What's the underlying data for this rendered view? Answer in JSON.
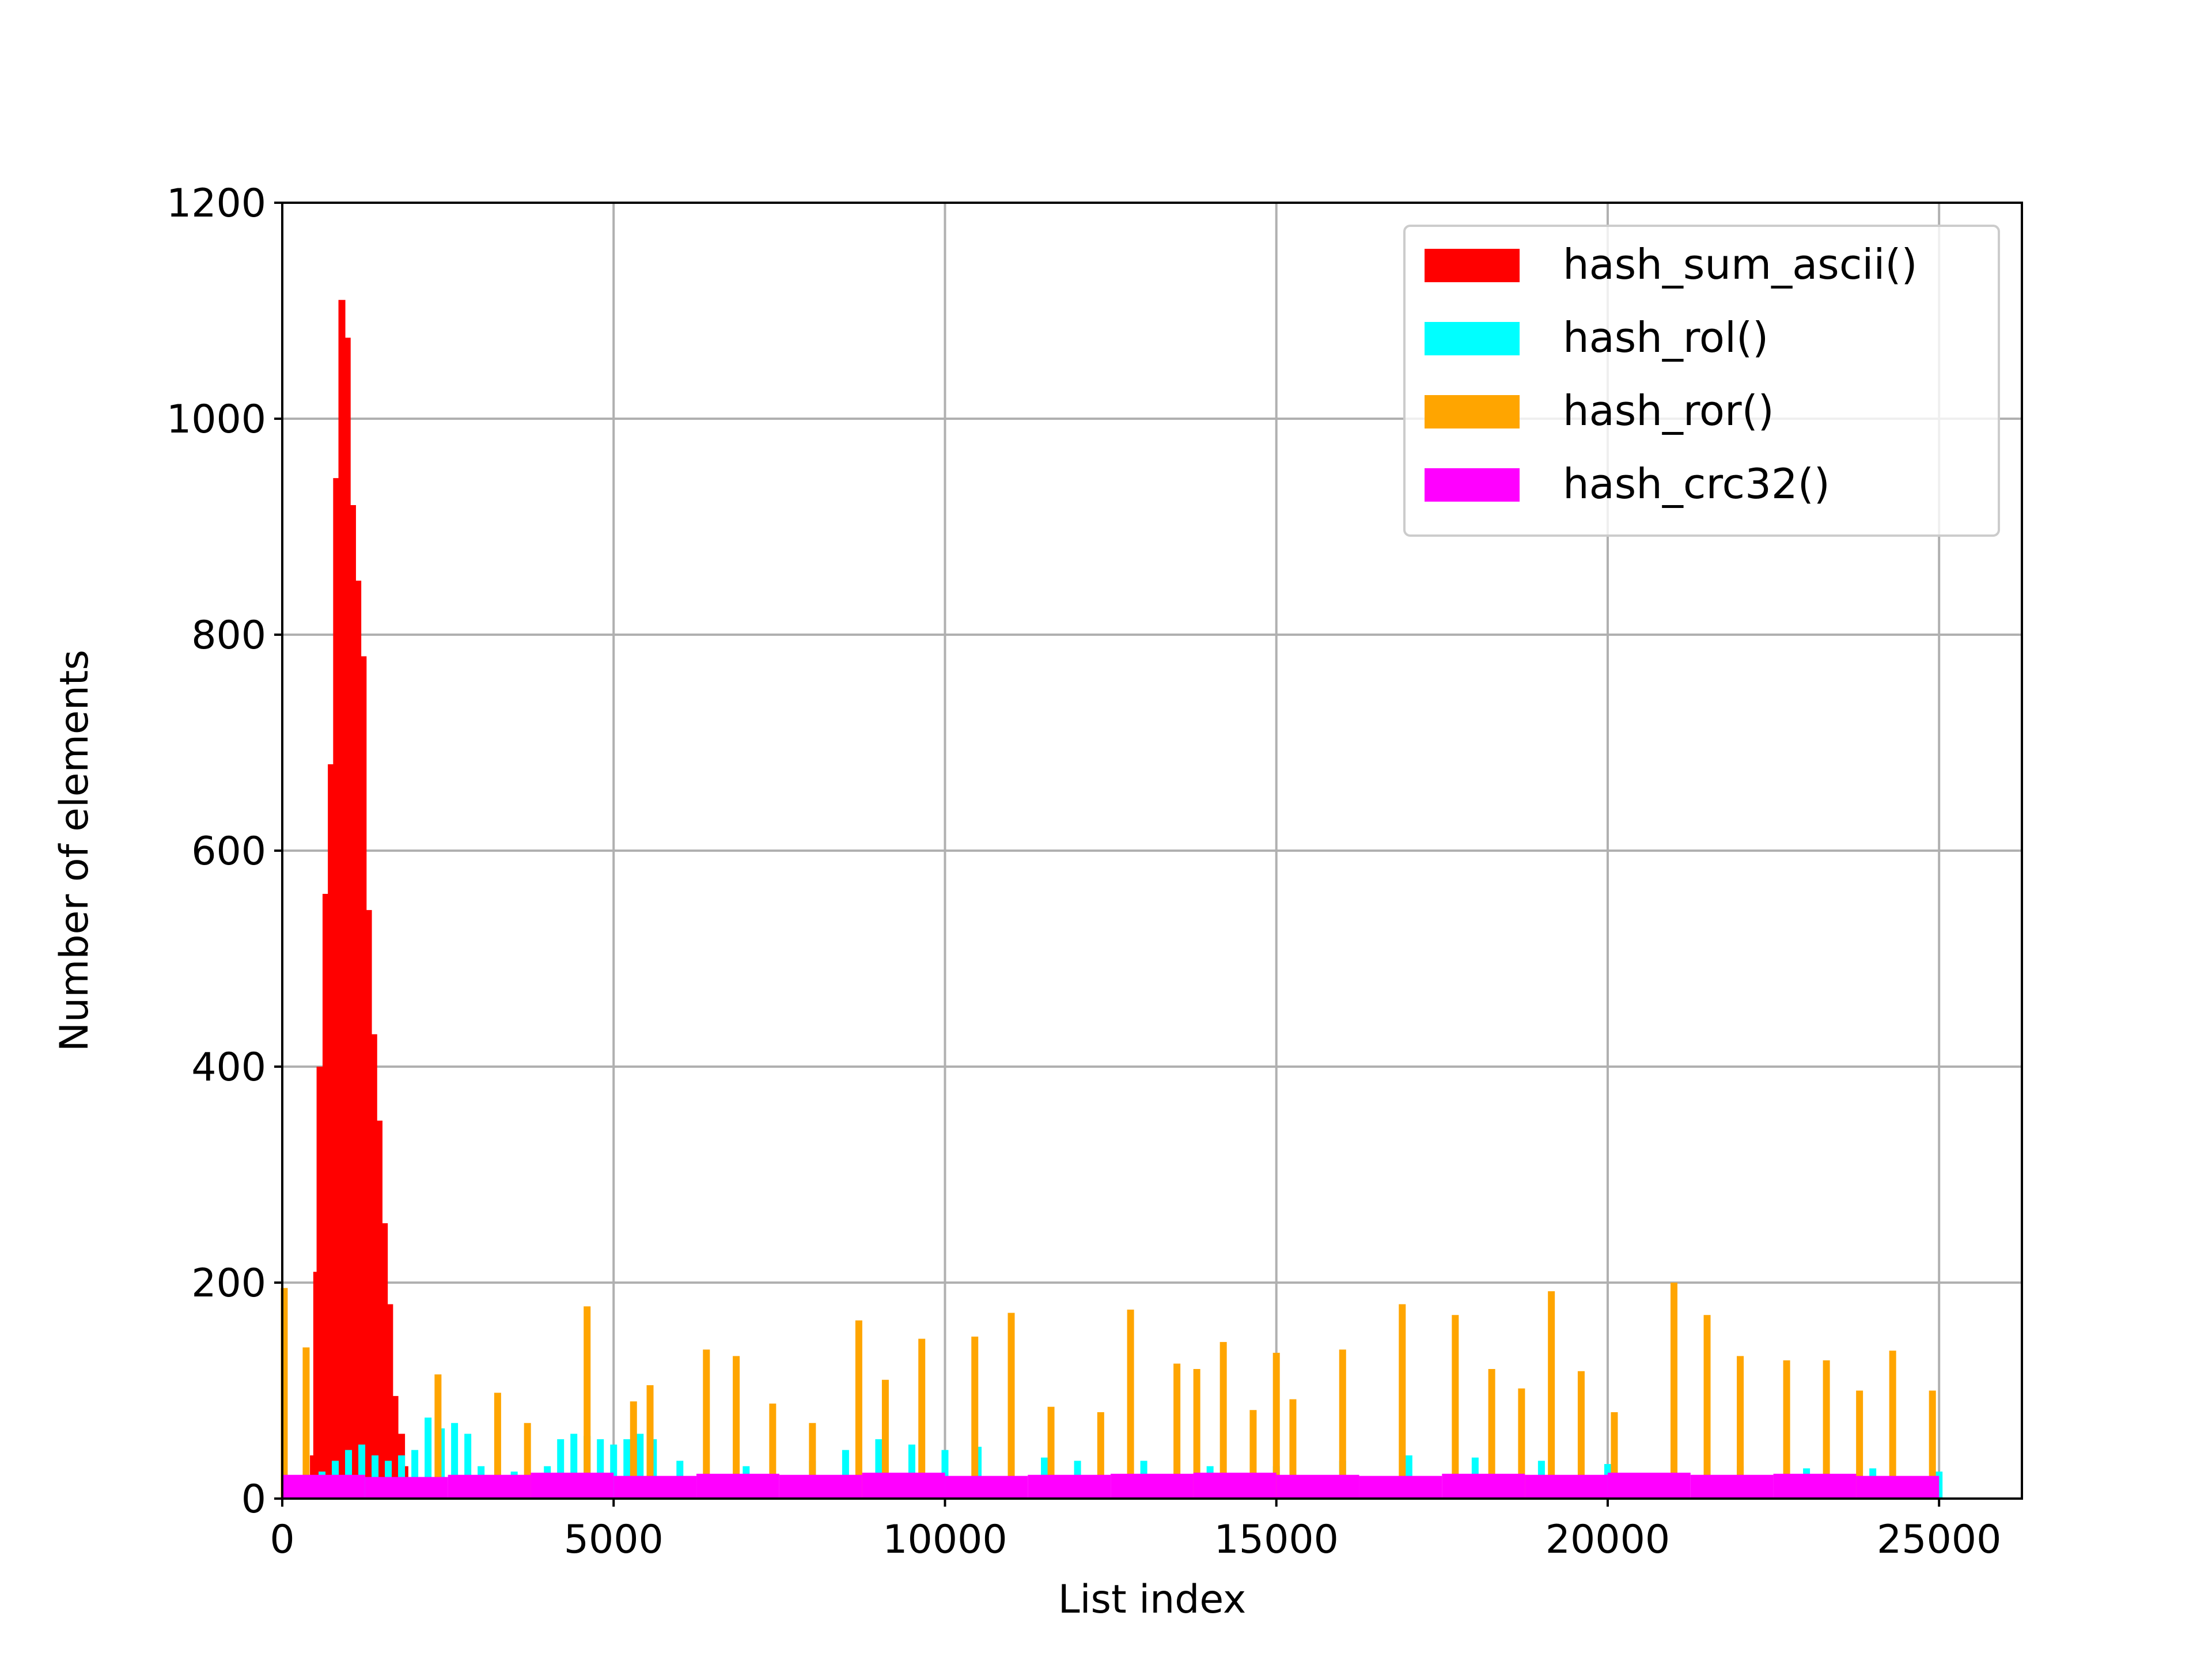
{
  "chart_data": {
    "type": "bar",
    "title": "",
    "xlabel": "List index",
    "ylabel": "Number of elements",
    "xlim": [
      0,
      26250
    ],
    "ylim": [
      0,
      1200
    ],
    "xticks": [
      0,
      5000,
      10000,
      15000,
      20000,
      25000
    ],
    "yticks": [
      0,
      200,
      400,
      600,
      800,
      1000,
      1200
    ],
    "grid": true,
    "legend_position": "upper-right",
    "series": [
      {
        "name": "hash_sum_ascii()",
        "color": "#ff0000",
        "x": [
          420,
          470,
          520,
          570,
          620,
          660,
          700,
          740,
          780,
          820,
          860,
          900,
          940,
          980,
          1020,
          1060,
          1100,
          1140,
          1180,
          1220,
          1260,
          1300,
          1340,
          1380,
          1420,
          1460,
          1500,
          1540,
          1580,
          1620,
          1660,
          1700,
          1740,
          1800,
          1850,
          1900,
          2000
        ],
        "values": [
          5,
          40,
          210,
          400,
          30,
          560,
          220,
          680,
          330,
          945,
          420,
          1110,
          540,
          1075,
          380,
          920,
          250,
          850,
          150,
          780,
          90,
          545,
          60,
          430,
          40,
          350,
          25,
          255,
          20,
          180,
          15,
          95,
          10,
          60,
          30,
          12,
          5
        ]
      },
      {
        "name": "hash_rol()",
        "color": "#00ffff",
        "x": [
          600,
          800,
          1000,
          1200,
          1400,
          1600,
          1800,
          2000,
          2200,
          2400,
          2600,
          2800,
          3000,
          3500,
          4000,
          4200,
          4400,
          4600,
          4800,
          5000,
          5200,
          5400,
          5600,
          6000,
          7000,
          8000,
          8500,
          9000,
          9500,
          10000,
          10500,
          11000,
          11500,
          12000,
          13000,
          14000,
          15000,
          16000,
          17000,
          18000,
          19000,
          20000,
          21000,
          22000,
          23000,
          24000,
          25000
        ],
        "values": [
          25,
          35,
          45,
          50,
          40,
          35,
          40,
          45,
          75,
          65,
          70,
          60,
          30,
          25,
          30,
          55,
          60,
          58,
          55,
          50,
          55,
          60,
          55,
          35,
          30,
          35,
          45,
          55,
          50,
          45,
          48,
          42,
          38,
          35,
          35,
          30,
          30,
          35,
          40,
          38,
          35,
          32,
          30,
          30,
          28,
          28,
          25
        ]
      },
      {
        "name": "hash_ror()",
        "color": "#ffa500",
        "x": [
          30,
          360,
          2350,
          3250,
          3700,
          4600,
          5300,
          5550,
          6400,
          6850,
          7400,
          8000,
          8700,
          9100,
          9650,
          10450,
          11000,
          11600,
          12350,
          12800,
          13500,
          13800,
          14200,
          14650,
          15000,
          15250,
          16000,
          16900,
          17700,
          18250,
          18700,
          19150,
          19600,
          20100,
          21000,
          21500,
          22000,
          22700,
          23300,
          23800,
          24300,
          24900
        ],
        "values": [
          195,
          140,
          115,
          98,
          70,
          178,
          90,
          105,
          138,
          132,
          88,
          70,
          165,
          110,
          148,
          150,
          172,
          85,
          80,
          175,
          125,
          120,
          145,
          82,
          135,
          92,
          138,
          180,
          170,
          120,
          102,
          192,
          118,
          80,
          200,
          170,
          132,
          128,
          128,
          100,
          137,
          100
        ]
      },
      {
        "name": "hash_crc32()",
        "color": "#ff00ff",
        "x": [
          0,
          1250,
          2500,
          3750,
          5000,
          6250,
          7500,
          8750,
          10000,
          11250,
          12500,
          13750,
          15000,
          16250,
          17500,
          18750,
          20000,
          21250,
          22500,
          23750,
          25000
        ],
        "values": [
          22,
          20,
          22,
          24,
          21,
          23,
          22,
          24,
          21,
          22,
          23,
          24,
          22,
          21,
          23,
          22,
          24,
          22,
          23,
          21,
          22
        ]
      }
    ]
  }
}
